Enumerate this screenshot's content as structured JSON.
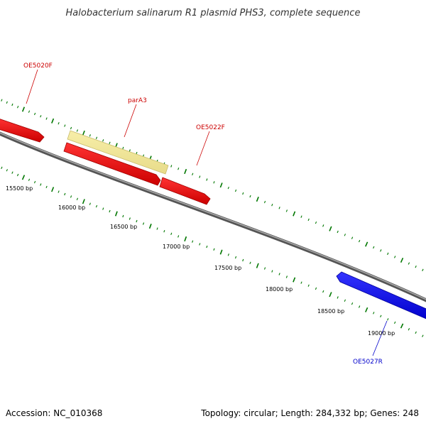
{
  "header": {
    "title": "Halobacterium salinarum R1 plasmid PHS3, complete sequence"
  },
  "footer": {
    "accession": "Accession: NC_010368",
    "summary": "Topology: circular; Length: 284,332 bp; Genes: 248"
  },
  "colors": {
    "backbone": "#808080",
    "forward_gene": "#ff0000",
    "reverse_gene": "#0000ff",
    "highlight_gene": "#f0e68c",
    "tick": "#007700",
    "label_forward": "#cc0000",
    "label_reverse": "#0000cc"
  },
  "position_ticks": [
    {
      "label": "15500 bp"
    },
    {
      "label": "16000 bp"
    },
    {
      "label": "16500 bp"
    },
    {
      "label": "17000 bp"
    },
    {
      "label": "17500 bp"
    },
    {
      "label": "18000 bp"
    },
    {
      "label": "18500 bp"
    },
    {
      "label": "19000 bp"
    }
  ],
  "genes": [
    {
      "name": "OE5020F",
      "strand": "forward",
      "color": "#ff0000"
    },
    {
      "name": "parA3",
      "strand": "forward",
      "color": "#f0e68c"
    },
    {
      "name": "OE5022F",
      "strand": "forward",
      "color": "#ff0000"
    },
    {
      "name": "OE5027R",
      "strand": "reverse",
      "color": "#0000ff"
    }
  ]
}
